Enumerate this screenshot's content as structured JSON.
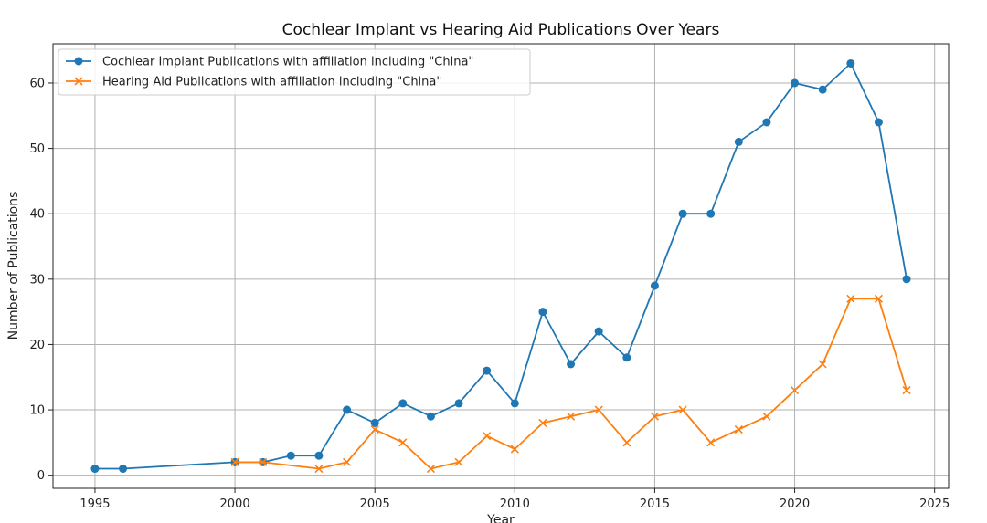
{
  "chart_data": {
    "type": "line",
    "title": "Cochlear Implant vs Hearing Aid Publications Over Years",
    "xlabel": "Year",
    "ylabel": "Number of Publications",
    "xlim": [
      1993.5,
      2025.5
    ],
    "ylim": [
      -2,
      66
    ],
    "xticks": [
      1995,
      2000,
      2005,
      2010,
      2015,
      2020,
      2025
    ],
    "yticks": [
      0,
      10,
      20,
      30,
      40,
      50,
      60
    ],
    "grid": true,
    "legend_position": "top-left",
    "series": [
      {
        "name": "Cochlear Implant Publications with affiliation including \"China\"",
        "color": "#1f77b4",
        "marker": "circle",
        "x": [
          1995,
          1996,
          2000,
          2001,
          2002,
          2003,
          2004,
          2005,
          2006,
          2007,
          2008,
          2009,
          2010,
          2011,
          2012,
          2013,
          2014,
          2015,
          2016,
          2017,
          2018,
          2019,
          2020,
          2021,
          2022,
          2023,
          2024
        ],
        "y": [
          1,
          1,
          2,
          2,
          3,
          3,
          10,
          8,
          11,
          9,
          11,
          16,
          11,
          25,
          17,
          22,
          18,
          29,
          40,
          40,
          51,
          54,
          60,
          59,
          63,
          54,
          30
        ]
      },
      {
        "name": "Hearing Aid Publications with affiliation including \"China\"",
        "color": "#ff7f0e",
        "marker": "x",
        "x": [
          2000,
          2001,
          2003,
          2004,
          2005,
          2006,
          2007,
          2008,
          2009,
          2010,
          2011,
          2012,
          2013,
          2014,
          2015,
          2016,
          2017,
          2018,
          2019,
          2020,
          2021,
          2022,
          2023,
          2024
        ],
        "y": [
          2,
          2,
          1,
          2,
          7,
          5,
          1,
          2,
          6,
          4,
          8,
          9,
          10,
          5,
          9,
          10,
          5,
          7,
          9,
          13,
          17,
          27,
          27,
          13
        ]
      }
    ]
  }
}
